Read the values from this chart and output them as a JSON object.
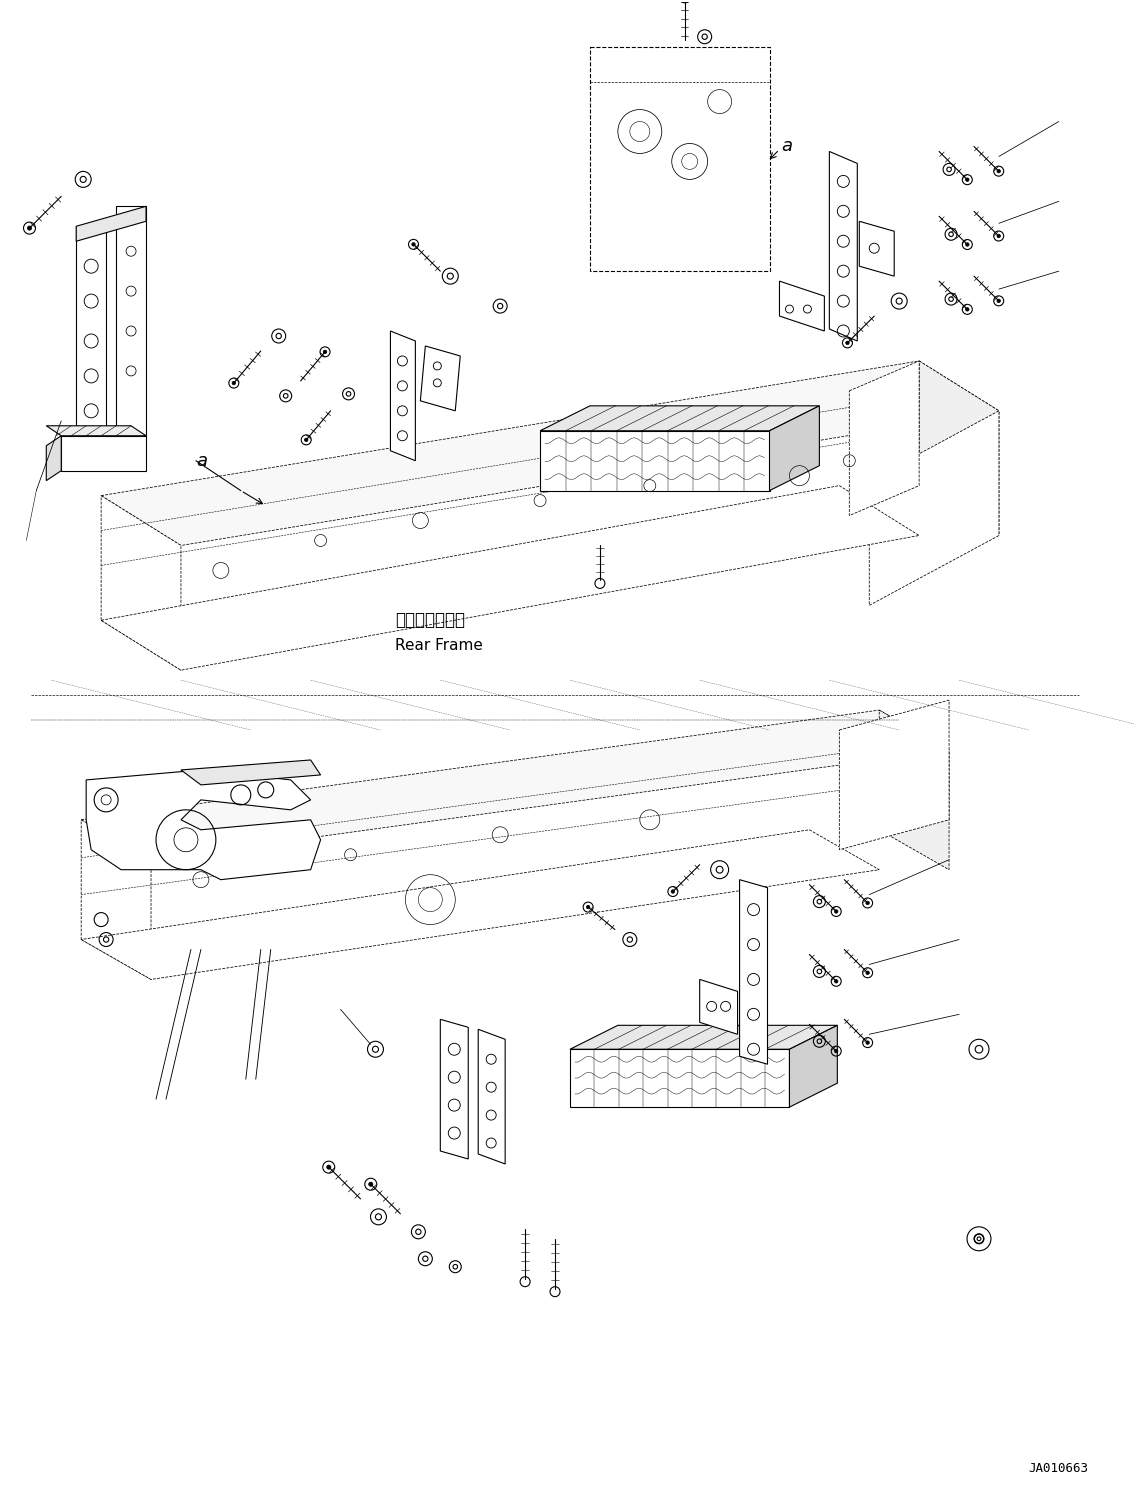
{
  "background_color": "#ffffff",
  "figure_width": 11.35,
  "figure_height": 14.91,
  "dpi": 100,
  "label_rear_frame_jp": "リヤーフレーム",
  "label_rear_frame_en": "Rear Frame",
  "watermark": "JA010663",
  "line_color": "#000000",
  "line_width": 0.8
}
